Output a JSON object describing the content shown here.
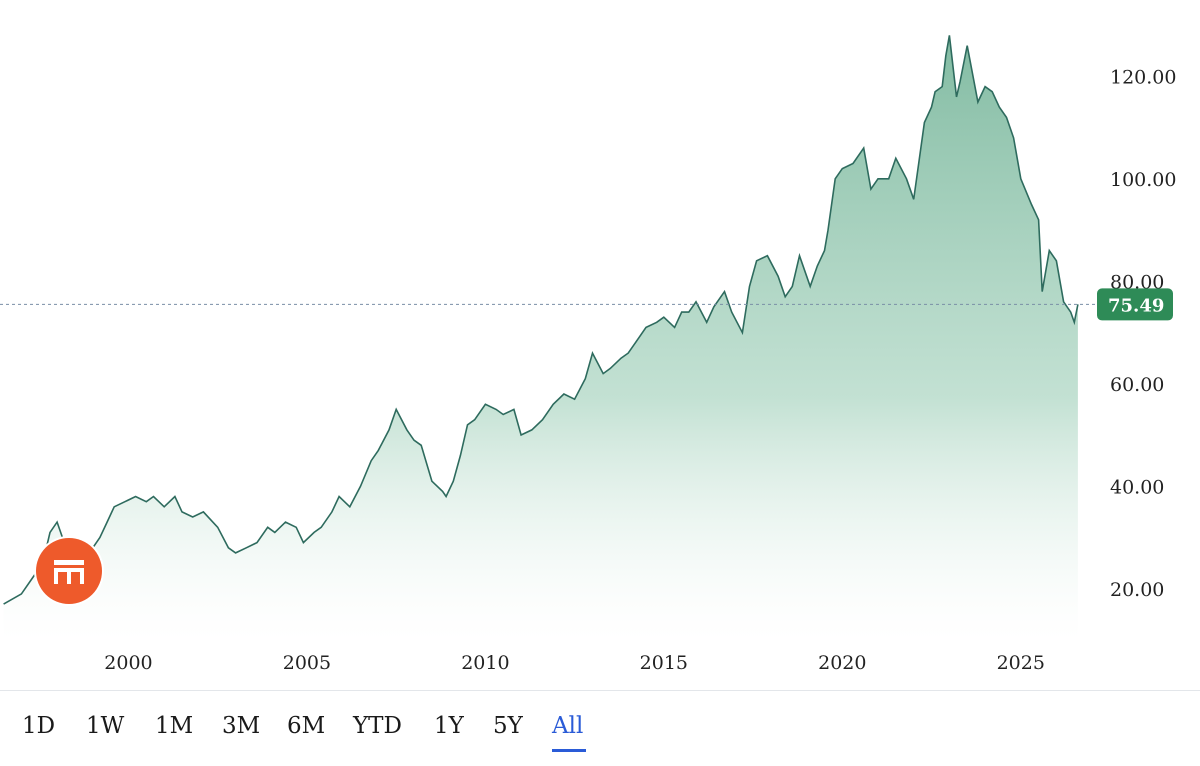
{
  "chart_data": {
    "type": "area",
    "title": "",
    "xlabel": "",
    "ylabel": "",
    "x_ticks": [
      "2000",
      "2005",
      "2010",
      "2015",
      "2020",
      "2025"
    ],
    "y_ticks": [
      "20.00",
      "40.00",
      "60.00",
      "80.00",
      "100.00",
      "120.00"
    ],
    "xlim": [
      1996.4,
      2026.8
    ],
    "ylim": [
      10,
      131
    ],
    "grid": false,
    "current_price": 75.49,
    "current_price_label": "75.49",
    "colors": {
      "line": "#2e6b5e",
      "fill": "#8fc4ae",
      "badge": "#2e8b57",
      "dashed": "#7a8fa6"
    },
    "series": [
      {
        "x": [
          1996.5,
          1997.0,
          1997.3,
          1997.6,
          1997.8,
          1998.0,
          1998.3,
          1998.5,
          1998.7,
          1999.0,
          1999.2,
          1999.4,
          1999.6,
          1999.9,
          2000.2,
          2000.5,
          2000.7,
          2001.0,
          2001.3,
          2001.5,
          2001.8,
          2002.1,
          2002.5,
          2002.8,
          2003.0,
          2003.3,
          2003.6,
          2003.9,
          2004.1,
          2004.4,
          2004.7,
          2004.9,
          2005.2,
          2005.4,
          2005.7,
          2005.9,
          2006.2,
          2006.5,
          2006.8,
          2007.0,
          2007.3,
          2007.5,
          2007.8,
          2008.0,
          2008.2,
          2008.5,
          2008.8,
          2008.9,
          2009.1,
          2009.3,
          2009.5,
          2009.7,
          2010.0,
          2010.3,
          2010.5,
          2010.8,
          2011.0,
          2011.3,
          2011.6,
          2011.9,
          2012.2,
          2012.5,
          2012.8,
          2013.0,
          2013.3,
          2013.5,
          2013.8,
          2014.0,
          2014.3,
          2014.5,
          2014.8,
          2015.0,
          2015.3,
          2015.5,
          2015.7,
          2015.9,
          2016.2,
          2016.4,
          2016.7,
          2016.9,
          2017.2,
          2017.4,
          2017.6,
          2017.9,
          2018.2,
          2018.4,
          2018.6,
          2018.8,
          2019.1,
          2019.3,
          2019.5,
          2019.6,
          2019.8,
          2020.0,
          2020.3,
          2020.6,
          2020.8,
          2021.0,
          2021.3,
          2021.5,
          2021.8,
          2022.0,
          2022.3,
          2022.5,
          2022.6,
          2022.8,
          2022.9,
          2023.0,
          2023.2,
          2023.3,
          2023.5,
          2023.8,
          2024.0,
          2024.2,
          2024.4,
          2024.6,
          2024.8,
          2025.0,
          2025.3,
          2025.5,
          2025.6,
          2025.8,
          2026.0,
          2026.2,
          2026.4,
          2026.5,
          2026.6
        ],
        "y": [
          17,
          19,
          22,
          25,
          31,
          33,
          27,
          29,
          28,
          28,
          30,
          33,
          36,
          37,
          38,
          37,
          38,
          36,
          38,
          35,
          34,
          35,
          32,
          28,
          27,
          28,
          29,
          32,
          31,
          33,
          32,
          29,
          31,
          32,
          35,
          38,
          36,
          40,
          45,
          47,
          51,
          55,
          51,
          49,
          48,
          41,
          39,
          38,
          41,
          46,
          52,
          53,
          56,
          55,
          54,
          55,
          50,
          51,
          53,
          56,
          58,
          57,
          61,
          66,
          62,
          63,
          65,
          66,
          69,
          71,
          72,
          73,
          71,
          74,
          74,
          76,
          72,
          75,
          78,
          74,
          70,
          79,
          84,
          85,
          81,
          77,
          79,
          85,
          79,
          83,
          86,
          90,
          100,
          102,
          103,
          106,
          98,
          100,
          100,
          104,
          100,
          96,
          111,
          114,
          117,
          118,
          124,
          128,
          116,
          119,
          126,
          115,
          118,
          117,
          114,
          112,
          108,
          100,
          95,
          92,
          78,
          86,
          84,
          76,
          74,
          72,
          75.49
        ]
      }
    ]
  },
  "range_buttons": [
    "1D",
    "1W",
    "1M",
    "3M",
    "6M",
    "YTD",
    "1Y",
    "5Y",
    "All"
  ],
  "active_range": "All",
  "logo_icon": "broker-logo-icon"
}
